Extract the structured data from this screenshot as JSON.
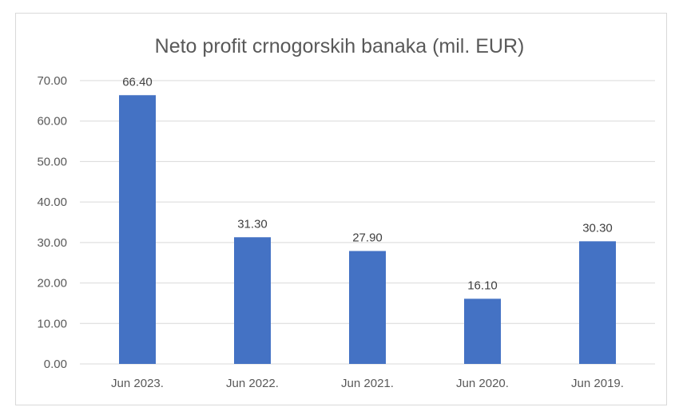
{
  "chart_data": {
    "type": "bar",
    "title": "Neto profit crnogorskih banaka (mil. EUR)",
    "categories": [
      "Jun 2023.",
      "Jun 2022.",
      "Jun 2021.",
      "Jun 2020.",
      "Jun 2019."
    ],
    "values": [
      66.4,
      31.3,
      27.9,
      16.1,
      30.3
    ],
    "data_labels": [
      "66.40",
      "31.30",
      "27.90",
      "16.10",
      "30.30"
    ],
    "xlabel": "",
    "ylabel": "",
    "ylim": [
      0,
      70
    ],
    "yticks": [
      "0.00",
      "10.00",
      "20.00",
      "30.00",
      "40.00",
      "50.00",
      "60.00",
      "70.00"
    ],
    "grid": true,
    "legend": "none",
    "bar_color": "#4472c4"
  }
}
